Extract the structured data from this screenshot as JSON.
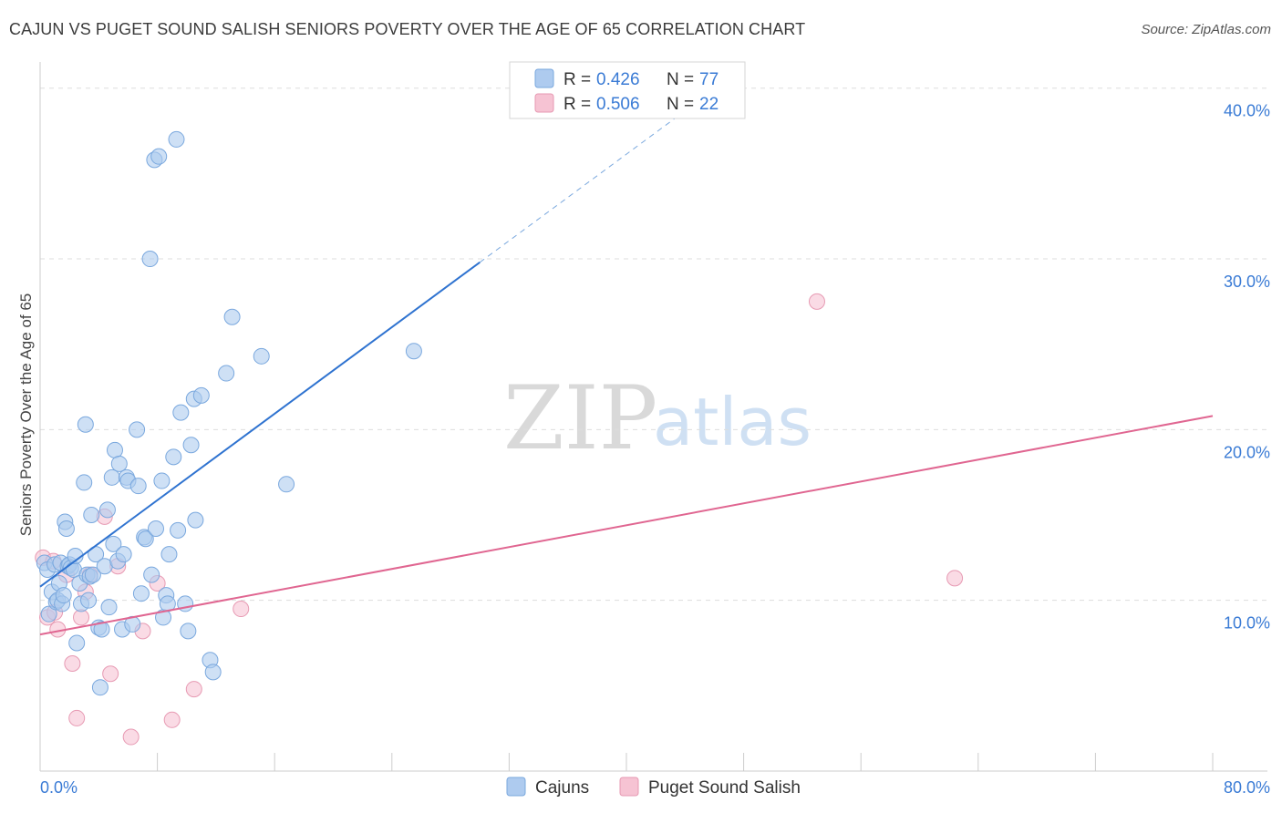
{
  "title": "CAJUN VS PUGET SOUND SALISH SENIORS POVERTY OVER THE AGE OF 65 CORRELATION CHART",
  "source": "Source: ZipAtlas.com",
  "watermark": {
    "zip": "ZIP",
    "atlas": "atlas"
  },
  "colors": {
    "cajun_fill": "#aecbef",
    "cajun_stroke": "#7aa8de",
    "cajun_line": "#2f73d0",
    "salish_fill": "#f6c3d3",
    "salish_stroke": "#e79ab3",
    "salish_line": "#e06691",
    "grid": "#dddddd",
    "tick_label": "#3a7bd5"
  },
  "legend": {
    "rows": [
      {
        "r_label": "R =",
        "r_value": "0.426",
        "n_label": "N =",
        "n_value": "77"
      },
      {
        "r_label": "R =",
        "r_value": "0.506",
        "n_label": "N =",
        "n_value": "22"
      }
    ]
  },
  "bottom_legend": [
    "Cajuns",
    "Puget Sound Salish"
  ],
  "chart_data": {
    "type": "scatter",
    "title": "CAJUN VS PUGET SOUND SALISH SENIORS POVERTY OVER THE AGE OF 65 CORRELATION CHART",
    "xlabel": "",
    "ylabel": "Seniors Poverty Over the Age of 65",
    "xlim": [
      0,
      80
    ],
    "ylim": [
      0,
      41
    ],
    "x_tick_labels": [
      "0.0%",
      "80.0%"
    ],
    "y_ticks": [
      10,
      20,
      30,
      40
    ],
    "y_tick_labels": [
      "10.0%",
      "20.0%",
      "30.0%",
      "40.0%"
    ],
    "grid": true,
    "legend_position": "top-center",
    "series": [
      {
        "name": "Cajuns",
        "R": 0.426,
        "N": 77,
        "trend": {
          "x0": 0,
          "y0": 10.8,
          "x1": 30,
          "y1": 29.8,
          "dashed_to_x": 45
        },
        "points": [
          [
            0.3,
            12.2
          ],
          [
            0.5,
            11.8
          ],
          [
            0.6,
            9.2
          ],
          [
            0.8,
            10.5
          ],
          [
            1.0,
            12.1
          ],
          [
            1.1,
            9.9
          ],
          [
            1.2,
            10.0
          ],
          [
            1.3,
            11.0
          ],
          [
            1.4,
            12.2
          ],
          [
            1.5,
            9.8
          ],
          [
            1.6,
            10.3
          ],
          [
            1.7,
            14.6
          ],
          [
            1.8,
            14.2
          ],
          [
            1.9,
            12.0
          ],
          [
            2.0,
            12.1
          ],
          [
            2.1,
            11.9
          ],
          [
            2.3,
            11.8
          ],
          [
            2.4,
            12.6
          ],
          [
            2.5,
            7.5
          ],
          [
            2.7,
            11.0
          ],
          [
            2.8,
            9.8
          ],
          [
            3.0,
            16.9
          ],
          [
            3.1,
            20.3
          ],
          [
            3.2,
            11.5
          ],
          [
            3.3,
            10.0
          ],
          [
            3.4,
            11.4
          ],
          [
            3.5,
            15.0
          ],
          [
            3.6,
            11.5
          ],
          [
            3.8,
            12.7
          ],
          [
            4.0,
            8.4
          ],
          [
            4.1,
            4.9
          ],
          [
            4.2,
            8.3
          ],
          [
            4.4,
            12.0
          ],
          [
            4.6,
            15.3
          ],
          [
            4.7,
            9.6
          ],
          [
            4.9,
            17.2
          ],
          [
            5.0,
            13.3
          ],
          [
            5.1,
            18.8
          ],
          [
            5.3,
            12.3
          ],
          [
            5.4,
            18.0
          ],
          [
            5.6,
            8.3
          ],
          [
            5.7,
            12.7
          ],
          [
            5.9,
            17.2
          ],
          [
            6.0,
            17.0
          ],
          [
            6.3,
            8.6
          ],
          [
            6.6,
            20.0
          ],
          [
            6.7,
            16.7
          ],
          [
            6.9,
            10.4
          ],
          [
            7.1,
            13.7
          ],
          [
            7.2,
            13.6
          ],
          [
            7.5,
            30.0
          ],
          [
            7.6,
            11.5
          ],
          [
            7.8,
            35.8
          ],
          [
            7.9,
            14.2
          ],
          [
            8.1,
            36.0
          ],
          [
            8.3,
            17.0
          ],
          [
            8.4,
            9.0
          ],
          [
            8.6,
            10.3
          ],
          [
            8.7,
            9.8
          ],
          [
            8.8,
            12.7
          ],
          [
            9.1,
            18.4
          ],
          [
            9.3,
            37.0
          ],
          [
            9.4,
            14.1
          ],
          [
            9.6,
            21.0
          ],
          [
            9.9,
            9.8
          ],
          [
            10.1,
            8.2
          ],
          [
            10.3,
            19.1
          ],
          [
            10.5,
            21.8
          ],
          [
            10.6,
            14.7
          ],
          [
            11.0,
            22.0
          ],
          [
            11.6,
            6.5
          ],
          [
            11.8,
            5.8
          ],
          [
            12.7,
            23.3
          ],
          [
            13.1,
            26.6
          ],
          [
            15.1,
            24.3
          ],
          [
            16.8,
            16.8
          ],
          [
            25.5,
            24.6
          ]
        ]
      },
      {
        "name": "Puget Sound Salish",
        "R": 0.506,
        "N": 22,
        "trend": {
          "x0": 0,
          "y0": 8.0,
          "x1": 80,
          "y1": 20.8
        },
        "points": [
          [
            0.2,
            12.5
          ],
          [
            0.5,
            9.0
          ],
          [
            1.0,
            9.3
          ],
          [
            1.2,
            8.3
          ],
          [
            1.8,
            11.5
          ],
          [
            2.2,
            6.3
          ],
          [
            2.5,
            3.1
          ],
          [
            2.8,
            9.0
          ],
          [
            3.1,
            10.5
          ],
          [
            3.4,
            11.5
          ],
          [
            4.4,
            14.9
          ],
          [
            4.8,
            5.7
          ],
          [
            5.3,
            12.0
          ],
          [
            6.2,
            2.0
          ],
          [
            7.0,
            8.2
          ],
          [
            8.0,
            11.0
          ],
          [
            9.0,
            3.0
          ],
          [
            10.5,
            4.8
          ],
          [
            13.7,
            9.5
          ],
          [
            53.0,
            27.5
          ],
          [
            62.4,
            11.3
          ],
          [
            0.9,
            12.3
          ]
        ]
      }
    ]
  }
}
